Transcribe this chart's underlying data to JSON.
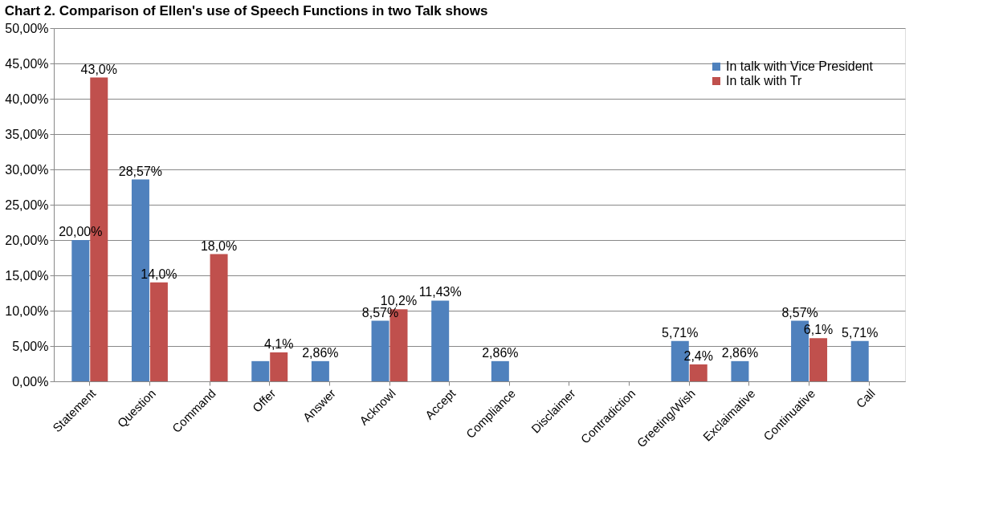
{
  "chart_data": {
    "type": "bar",
    "title": "Chart 2. Comparison of Ellen's use of Speech Functions in two Talk shows",
    "categories": [
      "Statement",
      "Question",
      "Command",
      "Offer",
      "Answer",
      "Acknowl",
      "Accept",
      "Compliance",
      "Disclaimer",
      "Contradiction",
      "Greeting/Wish",
      "Exclaimative",
      "Continuative",
      "Call"
    ],
    "series": [
      {
        "name": "In talk with Vice President",
        "color": "#4f81bd",
        "values": [
          20.0,
          28.57,
          null,
          2.86,
          2.86,
          8.57,
          11.43,
          2.86,
          null,
          null,
          5.71,
          2.86,
          8.57,
          5.71
        ],
        "value_labels": [
          "20,00%",
          "28,57%",
          null,
          null,
          "2,86%",
          "8,57%",
          "11,43%",
          "2,86%",
          null,
          null,
          "5,71%",
          "2,86%",
          "8,57%",
          "5,71%"
        ]
      },
      {
        "name": "In talk with Tr",
        "color": "#c0504d",
        "values": [
          43.0,
          14.0,
          18.0,
          4.1,
          null,
          10.2,
          null,
          null,
          null,
          null,
          2.4,
          null,
          6.1,
          null
        ],
        "value_labels": [
          "43,0%",
          "14,0%",
          "18,0%",
          "4,1%",
          null,
          "10,2%",
          null,
          null,
          null,
          null,
          "2,4%",
          null,
          "6,1%",
          null
        ]
      }
    ],
    "ylim": [
      0,
      50
    ],
    "yticks": [
      {
        "value": 0,
        "label": "0,00%"
      },
      {
        "value": 5,
        "label": "5,00%"
      },
      {
        "value": 10,
        "label": "10,00%"
      },
      {
        "value": 15,
        "label": "15,00%"
      },
      {
        "value": 20,
        "label": "20,00%"
      },
      {
        "value": 25,
        "label": "25,00%"
      },
      {
        "value": 30,
        "label": "30,00%"
      },
      {
        "value": 35,
        "label": "35,00%"
      },
      {
        "value": 40,
        "label": "40,00%"
      },
      {
        "value": 45,
        "label": "45,00%"
      },
      {
        "value": 50,
        "label": "50,00%"
      }
    ],
    "grid": "y",
    "legend": "top right"
  }
}
